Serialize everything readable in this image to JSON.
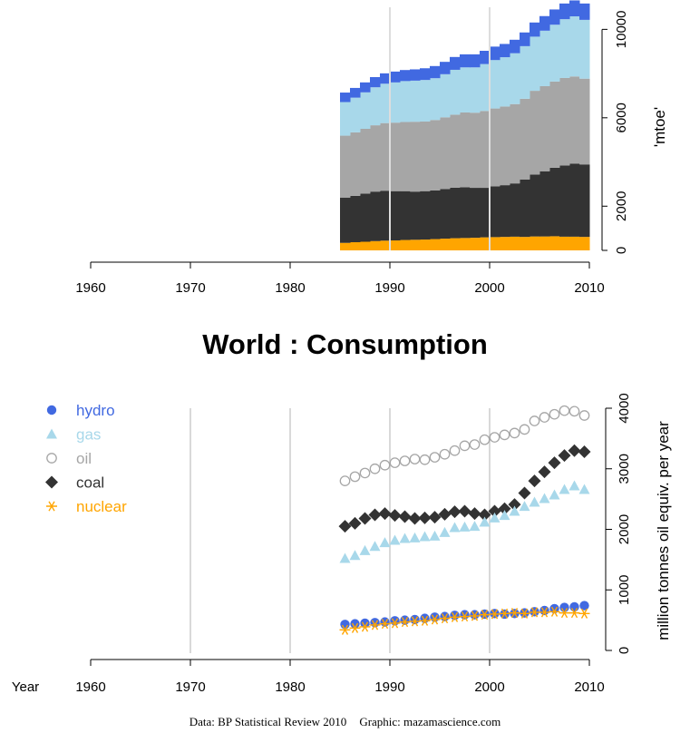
{
  "colors": {
    "hydro": "#4169e1",
    "gas": "#a8d8ea",
    "oil": "#a6a6a6",
    "coal": "#333333",
    "nuclear": "#ffa500",
    "gridline": "#d9d9d9",
    "axis": "#000000"
  },
  "title": "World :  Consumption",
  "credit": {
    "data": "Data: BP Statistical Review 2010",
    "graphic": "Graphic: mazamascience.com"
  },
  "chart_data": [
    {
      "type": "area",
      "stacked": true,
      "step": true,
      "xlabel": "",
      "ylabel": "'mtoe'",
      "xlim": [
        1960,
        2010
      ],
      "ylim": [
        0,
        11000
      ],
      "x_ticks": [
        "1960",
        "1970",
        "1980",
        "1990",
        "2000",
        "2010"
      ],
      "y_ticks": [
        "0",
        "2000",
        "6000",
        "10000"
      ],
      "y_tick_values": [
        0,
        2000,
        6000,
        10000
      ],
      "gridlines_x": [
        1990,
        2000
      ],
      "stack_order": [
        "nuclear",
        "coal",
        "oil",
        "gas",
        "hydro"
      ],
      "x": [
        1985,
        1986,
        1987,
        1988,
        1989,
        1990,
        1991,
        1992,
        1993,
        1994,
        1995,
        1996,
        1997,
        1998,
        1999,
        2000,
        2001,
        2002,
        2003,
        2004,
        2005,
        2006,
        2007,
        2008,
        2009
      ],
      "series": [
        {
          "key": "nuclear",
          "values": [
            340,
            370,
            390,
            420,
            440,
            450,
            470,
            480,
            490,
            510,
            530,
            550,
            560,
            570,
            590,
            600,
            610,
            620,
            610,
            630,
            630,
            640,
            620,
            620,
            610
          ]
        },
        {
          "key": "coal",
          "values": [
            2050,
            2100,
            2180,
            2240,
            2260,
            2230,
            2210,
            2180,
            2190,
            2200,
            2250,
            2290,
            2300,
            2260,
            2240,
            2300,
            2340,
            2410,
            2600,
            2800,
            2950,
            3100,
            3220,
            3300,
            3280
          ]
        },
        {
          "key": "oil",
          "values": [
            2800,
            2870,
            2930,
            3000,
            3060,
            3100,
            3130,
            3160,
            3150,
            3190,
            3240,
            3300,
            3380,
            3400,
            3480,
            3520,
            3560,
            3590,
            3650,
            3790,
            3850,
            3900,
            3960,
            3950,
            3880
          ]
        },
        {
          "key": "gas",
          "values": [
            1520,
            1570,
            1650,
            1720,
            1780,
            1820,
            1850,
            1860,
            1880,
            1890,
            1950,
            2030,
            2040,
            2050,
            2120,
            2190,
            2230,
            2300,
            2380,
            2450,
            2510,
            2570,
            2660,
            2720,
            2660
          ]
        },
        {
          "key": "hydro",
          "values": [
            430,
            440,
            450,
            460,
            470,
            490,
            500,
            510,
            530,
            550,
            560,
            580,
            590,
            590,
            600,
            610,
            600,
            610,
            620,
            640,
            660,
            690,
            710,
            720,
            740
          ]
        }
      ]
    },
    {
      "type": "scatter",
      "xlabel": "Year",
      "ylabel": "million tonnes oil equiv. per year",
      "xlim": [
        1960,
        2010
      ],
      "ylim": [
        0,
        4000
      ],
      "x_ticks": [
        "1960",
        "1970",
        "1980",
        "1990",
        "2000",
        "2010"
      ],
      "y_ticks": [
        "0",
        "1000",
        "2000",
        "3000",
        "4000"
      ],
      "y_tick_values": [
        0,
        1000,
        2000,
        3000,
        4000
      ],
      "gridlines_x": [
        1970,
        1980,
        1990,
        2000
      ],
      "legend_position": "top-left",
      "x": [
        1985,
        1986,
        1987,
        1988,
        1989,
        1990,
        1991,
        1992,
        1993,
        1994,
        1995,
        1996,
        1997,
        1998,
        1999,
        2000,
        2001,
        2002,
        2003,
        2004,
        2005,
        2006,
        2007,
        2008,
        2009
      ],
      "series": [
        {
          "key": "hydro",
          "name": "hydro",
          "marker": "circle-filled",
          "values": [
            430,
            440,
            450,
            460,
            470,
            490,
            500,
            510,
            530,
            550,
            560,
            580,
            590,
            590,
            600,
            610,
            600,
            610,
            620,
            640,
            660,
            690,
            710,
            720,
            740
          ]
        },
        {
          "key": "gas",
          "name": "gas",
          "marker": "triangle",
          "values": [
            1520,
            1570,
            1650,
            1720,
            1780,
            1820,
            1850,
            1860,
            1880,
            1890,
            1950,
            2030,
            2040,
            2050,
            2120,
            2190,
            2230,
            2300,
            2380,
            2450,
            2510,
            2570,
            2660,
            2720,
            2660
          ]
        },
        {
          "key": "oil",
          "name": "oil",
          "marker": "circle-open",
          "values": [
            2800,
            2870,
            2930,
            3000,
            3060,
            3100,
            3130,
            3160,
            3150,
            3190,
            3240,
            3300,
            3380,
            3400,
            3480,
            3520,
            3560,
            3590,
            3650,
            3790,
            3850,
            3900,
            3960,
            3950,
            3880
          ]
        },
        {
          "key": "coal",
          "name": "coal",
          "marker": "diamond",
          "values": [
            2050,
            2100,
            2180,
            2240,
            2260,
            2230,
            2210,
            2180,
            2190,
            2200,
            2250,
            2290,
            2300,
            2260,
            2240,
            2300,
            2340,
            2410,
            2600,
            2800,
            2950,
            3100,
            3220,
            3300,
            3280
          ]
        },
        {
          "key": "nuclear",
          "name": "nuclear",
          "marker": "asterisk",
          "values": [
            340,
            370,
            390,
            420,
            440,
            450,
            470,
            480,
            490,
            510,
            530,
            550,
            560,
            570,
            590,
            600,
            610,
            620,
            610,
            630,
            630,
            640,
            620,
            620,
            610
          ]
        }
      ]
    }
  ]
}
